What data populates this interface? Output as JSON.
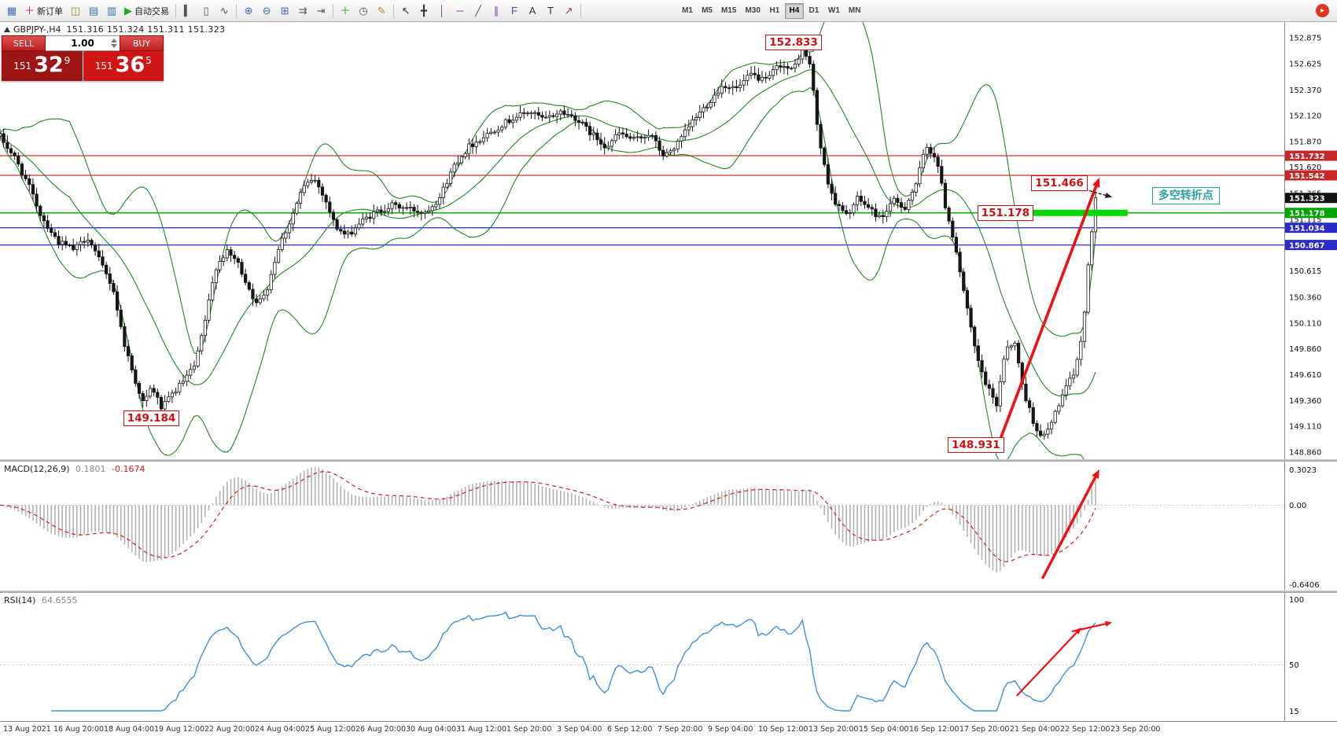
{
  "toolbar": {
    "buttons": [
      {
        "name": "market-watch-icon",
        "glyph": "▦",
        "color": "#3b6fb3"
      },
      {
        "name": "new-order-button",
        "glyph": "＋",
        "label": "新订单",
        "color": "#c03030"
      },
      {
        "name": "navigator-icon",
        "glyph": "◫",
        "color": "#b8862a"
      },
      {
        "name": "data-window-icon",
        "glyph": "▤",
        "color": "#3b6fb3"
      },
      {
        "name": "strategy-tester-icon",
        "glyph": "▥",
        "color": "#3b6fb3"
      },
      {
        "name": "autotrade-button",
        "glyph": "▶",
        "label": "自动交易",
        "color": "#1aaa1a"
      },
      {
        "sep": true
      },
      {
        "name": "bar-chart-mode-icon",
        "glyph": "▍",
        "color": "#555555"
      },
      {
        "name": "candlestick-mode-icon",
        "glyph": "▯",
        "color": "#555555"
      },
      {
        "name": "line-chart-mode-icon",
        "glyph": "∿",
        "color": "#555555"
      },
      {
        "sep": true
      },
      {
        "name": "zoom-in-icon",
        "glyph": "⊕",
        "color": "#3b6fb3"
      },
      {
        "name": "zoom-out-icon",
        "glyph": "⊖",
        "color": "#3b6fb3"
      },
      {
        "name": "tile-windows-icon",
        "glyph": "⊞",
        "color": "#3b6fb3"
      },
      {
        "name": "auto-scroll-icon",
        "glyph": "⇉",
        "color": "#555555"
      },
      {
        "name": "chart-shift-icon",
        "glyph": "⇥",
        "color": "#555555"
      },
      {
        "sep": true
      },
      {
        "name": "indicators-icon",
        "glyph": "＋",
        "color": "#1aaa1a"
      },
      {
        "name": "periods-icon",
        "glyph": "◷",
        "color": "#555555"
      },
      {
        "name": "templates-icon",
        "glyph": "✎",
        "color": "#b8862a"
      },
      {
        "sep": true
      },
      {
        "name": "cursor-icon",
        "glyph": "↖",
        "color": "#333333"
      },
      {
        "name": "crosshair-icon",
        "glyph": "╋",
        "color": "#333333"
      },
      {
        "name": "vertical-line-icon",
        "glyph": "│",
        "color": "#7a3bb3"
      },
      {
        "name": "horizontal-line-icon",
        "glyph": "─",
        "color": "#7a3bb3"
      },
      {
        "name": "trendline-icon",
        "glyph": "╱",
        "color": "#7a3bb3"
      },
      {
        "name": "channel-icon",
        "glyph": "∥",
        "color": "#7a3bb3"
      },
      {
        "name": "fibonacci-icon",
        "glyph": "F",
        "color": "#7a3bb3"
      },
      {
        "name": "text-icon",
        "glyph": "A",
        "color": "#333333"
      },
      {
        "name": "text-label-icon",
        "glyph": "T",
        "color": "#333333"
      },
      {
        "name": "arrow-tool-icon",
        "glyph": "↗",
        "color": "#c03030"
      },
      {
        "sep": true
      }
    ],
    "timeframes": [
      "M1",
      "M5",
      "M15",
      "M30",
      "H1",
      "H4",
      "D1",
      "W1",
      "MN"
    ],
    "active_timeframe": "H4",
    "community_glyph": "▸"
  },
  "trade_panel": {
    "sell_label": "SELL",
    "buy_label": "BUY",
    "lot": "1.00",
    "sell_big": "151",
    "sell_pips": "32",
    "sell_point": "9",
    "buy_big": "151",
    "buy_pips": "36",
    "buy_point": "5"
  },
  "price_axis": {
    "labels": [
      "152.875",
      "152.625",
      "152.370",
      "152.120",
      "151.870",
      "151.620",
      "151.365",
      "151.115",
      "150.865",
      "150.615",
      "150.360",
      "150.110",
      "149.860",
      "149.610",
      "149.360",
      "149.110",
      "148.860"
    ],
    "tags": [
      {
        "text": "151.732",
        "price": 151.732,
        "bg": "#c62828"
      },
      {
        "text": "151.542",
        "price": 151.542,
        "bg": "#c62828"
      },
      {
        "text": "151.323",
        "price": 151.323,
        "bg": "#141414"
      },
      {
        "text": "151.178",
        "price": 151.178,
        "bg": "#00a400"
      },
      {
        "text": "151.034",
        "price": 151.034,
        "bg": "#2b2bc8"
      },
      {
        "text": "150.867",
        "price": 150.867,
        "bg": "#2b2bc8"
      }
    ]
  },
  "hlines": [
    {
      "price": 151.732,
      "color": "#d03030",
      "width": 1.2
    },
    {
      "price": 151.542,
      "color": "#d03030",
      "width": 1.2
    },
    {
      "price": 151.178,
      "color": "#00b300",
      "width": 1.6
    },
    {
      "price": 151.034,
      "color": "#3434d0",
      "width": 1.4
    },
    {
      "price": 150.867,
      "color": "#3434d0",
      "width": 1.4
    }
  ],
  "annotations": {
    "price_flags": [
      {
        "text": "152.833",
        "xf": 0.596,
        "price": 152.833
      },
      {
        "text": "151.466",
        "xf": 0.803,
        "price": 151.466
      },
      {
        "text": "151.178",
        "xf": 0.761,
        "price": 151.178
      },
      {
        "text": "149.184",
        "xf": 0.096,
        "price": 149.184
      },
      {
        "text": "148.931",
        "xf": 0.738,
        "price": 148.931
      }
    ],
    "pivot_label": {
      "text": "多空转折点",
      "xf": 0.897,
      "price": 151.345,
      "color": "#2fa0a0"
    },
    "green_bar": {
      "price": 151.178,
      "x1f": 0.794,
      "x2f": 0.878,
      "color": "#00d800"
    },
    "main_arrow": {
      "x1f": 0.779,
      "p1": 148.99,
      "x2f": 0.856,
      "p2": 151.52
    },
    "dotted_arrow": {
      "x1f": 0.838,
      "p1": 151.43,
      "x2f": 0.866,
      "p2": 151.33
    },
    "macd_arrow": {
      "x1f": 0.812,
      "y1f": 0.9,
      "x2f": 0.856,
      "y2f": 0.06
    },
    "rsi_arrows": [
      {
        "x1f": 0.792,
        "y1f": 0.8,
        "x2f": 0.842,
        "y2f": 0.27
      },
      {
        "x1f": 0.835,
        "y1f": 0.3,
        "x2f": 0.866,
        "y2f": 0.23
      }
    ],
    "arrow_color": "#ef1010"
  },
  "chart_data": {
    "type": "candlestick",
    "symbol_period": "GBPJPY-,H4",
    "ohlc_text": "151.316 151.324 151.311 151.323",
    "ohlc_current": {
      "open": 151.316,
      "high": 151.324,
      "low": 151.311,
      "close": 151.323
    },
    "price_range": [
      148.86,
      152.875
    ],
    "candle_count": 300,
    "bollinger": {
      "period": 20,
      "deviation": 2,
      "color": "#1f8a1f"
    },
    "key_levels": {
      "high": 152.833,
      "aug_low": 149.184,
      "sep_low": 148.931,
      "pivot": 151.178,
      "breakout": 151.466,
      "res1": 151.732,
      "res2": 151.542,
      "sup1": 151.034,
      "sup2": 150.867
    },
    "price_path": [
      [
        0.0,
        151.92
      ],
      [
        0.012,
        151.7
      ],
      [
        0.022,
        151.45
      ],
      [
        0.032,
        151.15
      ],
      [
        0.045,
        150.9
      ],
      [
        0.058,
        150.82
      ],
      [
        0.068,
        150.95
      ],
      [
        0.078,
        150.7
      ],
      [
        0.088,
        150.45
      ],
      [
        0.096,
        149.95
      ],
      [
        0.104,
        149.6
      ],
      [
        0.112,
        149.32
      ],
      [
        0.118,
        149.5
      ],
      [
        0.126,
        149.28
      ],
      [
        0.134,
        149.42
      ],
      [
        0.143,
        149.55
      ],
      [
        0.152,
        149.7
      ],
      [
        0.16,
        150.15
      ],
      [
        0.168,
        150.65
      ],
      [
        0.176,
        150.8
      ],
      [
        0.184,
        150.72
      ],
      [
        0.192,
        150.5
      ],
      [
        0.2,
        150.28
      ],
      [
        0.208,
        150.45
      ],
      [
        0.217,
        150.85
      ],
      [
        0.226,
        151.1
      ],
      [
        0.235,
        151.4
      ],
      [
        0.244,
        151.52
      ],
      [
        0.252,
        151.35
      ],
      [
        0.261,
        151.05
      ],
      [
        0.27,
        150.95
      ],
      [
        0.28,
        151.08
      ],
      [
        0.292,
        151.18
      ],
      [
        0.305,
        151.25
      ],
      [
        0.318,
        151.22
      ],
      [
        0.33,
        151.18
      ],
      [
        0.342,
        151.32
      ],
      [
        0.354,
        151.65
      ],
      [
        0.365,
        151.82
      ],
      [
        0.377,
        151.92
      ],
      [
        0.389,
        152.02
      ],
      [
        0.4,
        152.1
      ],
      [
        0.412,
        152.16
      ],
      [
        0.424,
        152.08
      ],
      [
        0.436,
        152.16
      ],
      [
        0.448,
        152.1
      ],
      [
        0.46,
        151.95
      ],
      [
        0.472,
        151.82
      ],
      [
        0.482,
        151.95
      ],
      [
        0.494,
        151.88
      ],
      [
        0.506,
        151.95
      ],
      [
        0.517,
        151.72
      ],
      [
        0.528,
        151.85
      ],
      [
        0.54,
        152.08
      ],
      [
        0.552,
        152.25
      ],
      [
        0.563,
        152.42
      ],
      [
        0.574,
        152.38
      ],
      [
        0.585,
        152.52
      ],
      [
        0.596,
        152.45
      ],
      [
        0.607,
        152.62
      ],
      [
        0.617,
        152.55
      ],
      [
        0.625,
        152.78
      ],
      [
        0.631,
        152.6
      ],
      [
        0.637,
        151.95
      ],
      [
        0.643,
        151.55
      ],
      [
        0.65,
        151.28
      ],
      [
        0.659,
        151.15
      ],
      [
        0.668,
        151.32
      ],
      [
        0.677,
        151.22
      ],
      [
        0.686,
        151.12
      ],
      [
        0.695,
        151.3
      ],
      [
        0.704,
        151.22
      ],
      [
        0.713,
        151.45
      ],
      [
        0.721,
        151.82
      ],
      [
        0.729,
        151.72
      ],
      [
        0.736,
        151.25
      ],
      [
        0.744,
        150.85
      ],
      [
        0.752,
        150.3
      ],
      [
        0.76,
        149.8
      ],
      [
        0.768,
        149.5
      ],
      [
        0.776,
        149.32
      ],
      [
        0.783,
        149.88
      ],
      [
        0.79,
        149.92
      ],
      [
        0.797,
        149.45
      ],
      [
        0.804,
        149.18
      ],
      [
        0.811,
        148.98
      ],
      [
        0.818,
        149.12
      ],
      [
        0.825,
        149.35
      ],
      [
        0.832,
        149.52
      ],
      [
        0.838,
        149.68
      ],
      [
        0.844,
        150.15
      ],
      [
        0.849,
        150.9
      ],
      [
        0.853,
        151.32
      ]
    ],
    "macd": {
      "label": "MACD(12,26,9)",
      "value_main": "0.1801",
      "value_signal": "-0.1674",
      "scale_top": "0.3023",
      "scale_zero": "0.00",
      "scale_bottom": "-0.6406",
      "params": [
        12,
        26,
        9
      ]
    },
    "rsi": {
      "label": "RSI(14)",
      "value": "64.6555",
      "scale_top": "100",
      "scale_mid": "50",
      "scale_bottom": "15",
      "period": 14
    },
    "time_axis": [
      "13 Aug 2021",
      "16 Aug 20:00",
      "18 Aug 04:00",
      "19 Aug 12:00",
      "22 Aug 20:00",
      "24 Aug 04:00",
      "25 Aug 12:00",
      "26 Aug 20:00",
      "30 Aug 04:00",
      "31 Aug 12:00",
      "1 Sep 20:00",
      "3 Sep 04:00",
      "6 Sep 12:00",
      "7 Sep 20:00",
      "9 Sep 04:00",
      "10 Sep 12:00",
      "13 Sep 20:00",
      "15 Sep 04:00",
      "16 Sep 12:00",
      "17 Sep 20:00",
      "21 Sep 04:00",
      "22 Sep 12:00",
      "23 Sep 20:00"
    ]
  }
}
